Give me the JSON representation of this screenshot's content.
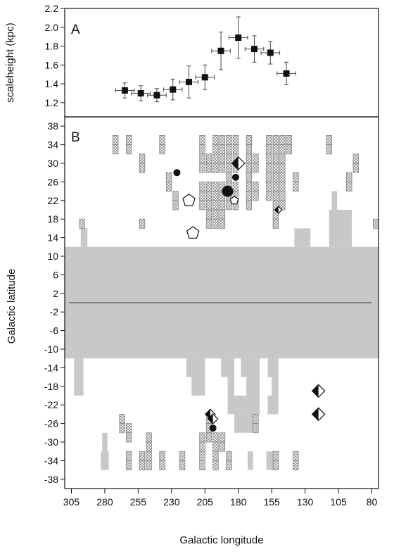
{
  "chart_data": [
    {
      "panel": "A",
      "type": "scatter",
      "ylabel": "scaleheight (kpc)",
      "xlim": [
        310,
        75
      ],
      "ylim": [
        1.05,
        2.2
      ],
      "yticks": [
        1.2,
        1.4,
        1.6,
        1.8,
        2.0,
        2.2
      ],
      "yticklabels": [
        "1.2",
        "1.4",
        "1.6",
        "1.8",
        "2.0",
        "2.2"
      ],
      "series": [
        {
          "points": [
            {
              "x": 265,
              "y": 1.33,
              "xerr": 7,
              "yerr": 0.08
            },
            {
              "x": 253,
              "y": 1.3,
              "xerr": 7,
              "yerr": 0.08
            },
            {
              "x": 241,
              "y": 1.28,
              "xerr": 7,
              "yerr": 0.07
            },
            {
              "x": 229,
              "y": 1.34,
              "xerr": 7,
              "yerr": 0.11
            },
            {
              "x": 217,
              "y": 1.42,
              "xerr": 7,
              "yerr": 0.17
            },
            {
              "x": 205,
              "y": 1.47,
              "xerr": 7,
              "yerr": 0.13
            },
            {
              "x": 193,
              "y": 1.75,
              "xerr": 7,
              "yerr": 0.2
            },
            {
              "x": 180,
              "y": 1.89,
              "xerr": 7,
              "yerr": 0.22
            },
            {
              "x": 168,
              "y": 1.77,
              "xerr": 7,
              "yerr": 0.14
            },
            {
              "x": 156,
              "y": 1.73,
              "xerr": 7,
              "yerr": 0.12
            },
            {
              "x": 144,
              "y": 1.51,
              "xerr": 7,
              "yerr": 0.12
            }
          ]
        }
      ]
    },
    {
      "panel": "B",
      "type": "scatter",
      "xlabel": "Galactic longitude",
      "ylabel": "Galactic latitude",
      "xlim": [
        310,
        75
      ],
      "ylim": [
        -40,
        40
      ],
      "xticks": [
        305,
        280,
        255,
        230,
        205,
        180,
        155,
        130,
        105,
        80
      ],
      "xticklabels": [
        "305",
        "280",
        "255",
        "230",
        "205",
        "180",
        "155",
        "130",
        "105",
        "80"
      ],
      "yticks": [
        38,
        34,
        30,
        26,
        22,
        18,
        14,
        10,
        6,
        2,
        -2,
        -6,
        -10,
        -14,
        -18,
        -22,
        -26,
        -30,
        -34,
        -38
      ],
      "yticklabels": [
        "38",
        "34",
        "30",
        "26",
        "22",
        "18",
        "14",
        "10",
        "6",
        "2",
        "-2",
        "-6",
        "-10",
        "-14",
        "-18",
        "-22",
        "-26",
        "-30",
        "-34",
        "-38"
      ],
      "plane_line_b": 0,
      "grey_coverage": [
        {
          "l0": 310,
          "l1": 75,
          "b0": -12,
          "b1": 12
        },
        {
          "l0": 303,
          "l1": 296,
          "b0": -20,
          "b1": -12
        },
        {
          "l0": 298,
          "l1": 293,
          "b0": 12,
          "b1": 16
        },
        {
          "l0": 138,
          "l1": 126,
          "b0": 12,
          "b1": 16
        },
        {
          "l0": 112,
          "l1": 95,
          "b0": 12,
          "b1": 20
        },
        {
          "l0": 110,
          "l1": 106,
          "b0": 20,
          "b1": 24
        },
        {
          "l0": 219,
          "l1": 205,
          "b0": -16,
          "b1": -12
        },
        {
          "l0": 215,
          "l1": 205,
          "b0": -20,
          "b1": -16
        },
        {
          "l0": 193,
          "l1": 183,
          "b0": -16,
          "b1": -12
        },
        {
          "l0": 188,
          "l1": 183,
          "b0": -20,
          "b1": -16
        },
        {
          "l0": 178,
          "l1": 164,
          "b0": -16,
          "b1": -12
        },
        {
          "l0": 174,
          "l1": 164,
          "b0": -20,
          "b1": -16
        },
        {
          "l0": 158,
          "l1": 150,
          "b0": -16,
          "b1": -12
        },
        {
          "l0": 155,
          "l1": 150,
          "b0": -20,
          "b1": -16
        },
        {
          "l0": 188,
          "l1": 164,
          "b0": -24,
          "b1": -20
        },
        {
          "l0": 183,
          "l1": 168,
          "b0": -28,
          "b1": -24
        },
        {
          "l0": 158,
          "l1": 150,
          "b0": -24,
          "b1": -20
        },
        {
          "l0": 282,
          "l1": 278,
          "b0": -32,
          "b1": -28
        },
        {
          "l0": 283,
          "l1": 277,
          "b0": -36,
          "b1": -32
        },
        {
          "l0": 173,
          "l1": 169,
          "b0": -36,
          "b1": -32
        },
        {
          "l0": 159,
          "l1": 154,
          "b0": -36,
          "b1": -32
        }
      ],
      "hatched_fields": [
        [
          297,
          16
        ],
        [
          272,
          34
        ],
        [
          272,
          32
        ],
        [
          262,
          34
        ],
        [
          262,
          32
        ],
        [
          252,
          30
        ],
        [
          252,
          28
        ],
        [
          252,
          16
        ],
        [
          237,
          34
        ],
        [
          237,
          32
        ],
        [
          232,
          26
        ],
        [
          232,
          24
        ],
        [
          227,
          22
        ],
        [
          227,
          20
        ],
        [
          207,
          34
        ],
        [
          207,
          32
        ],
        [
          207,
          30
        ],
        [
          207,
          28
        ],
        [
          207,
          24
        ],
        [
          207,
          22
        ],
        [
          207,
          20
        ],
        [
          202,
          30
        ],
        [
          202,
          28
        ],
        [
          202,
          24
        ],
        [
          202,
          22
        ],
        [
          202,
          20
        ],
        [
          202,
          18
        ],
        [
          202,
          16
        ],
        [
          197,
          34
        ],
        [
          197,
          32
        ],
        [
          197,
          30
        ],
        [
          197,
          28
        ],
        [
          197,
          24
        ],
        [
          197,
          22
        ],
        [
          197,
          20
        ],
        [
          197,
          18
        ],
        [
          197,
          16
        ],
        [
          192,
          34
        ],
        [
          192,
          32
        ],
        [
          192,
          30
        ],
        [
          192,
          28
        ],
        [
          192,
          24
        ],
        [
          192,
          22
        ],
        [
          192,
          20
        ],
        [
          192,
          18
        ],
        [
          192,
          16
        ],
        [
          187,
          34
        ],
        [
          187,
          32
        ],
        [
          187,
          30
        ],
        [
          187,
          28
        ],
        [
          187,
          26
        ],
        [
          187,
          24
        ],
        [
          187,
          22
        ],
        [
          187,
          20
        ],
        [
          182,
          34
        ],
        [
          182,
          32
        ],
        [
          182,
          30
        ],
        [
          182,
          28
        ],
        [
          182,
          24
        ],
        [
          182,
          22
        ],
        [
          182,
          20
        ],
        [
          172,
          34
        ],
        [
          172,
          32
        ],
        [
          172,
          30
        ],
        [
          172,
          28
        ],
        [
          172,
          26
        ],
        [
          172,
          24
        ],
        [
          172,
          22
        ],
        [
          172,
          20
        ],
        [
          167,
          30
        ],
        [
          167,
          28
        ],
        [
          167,
          24
        ],
        [
          167,
          22
        ],
        [
          157,
          34
        ],
        [
          157,
          32
        ],
        [
          157,
          30
        ],
        [
          157,
          28
        ],
        [
          157,
          26
        ],
        [
          157,
          24
        ],
        [
          157,
          22
        ],
        [
          152,
          34
        ],
        [
          152,
          32
        ],
        [
          152,
          30
        ],
        [
          152,
          28
        ],
        [
          152,
          26
        ],
        [
          152,
          24
        ],
        [
          152,
          22
        ],
        [
          152,
          20
        ],
        [
          152,
          18
        ],
        [
          152,
          16
        ],
        [
          147,
          34
        ],
        [
          147,
          32
        ],
        [
          147,
          30
        ],
        [
          147,
          28
        ],
        [
          147,
          26
        ],
        [
          147,
          24
        ],
        [
          147,
          22
        ],
        [
          147,
          20
        ],
        [
          142,
          34
        ],
        [
          142,
          32
        ],
        [
          137,
          26
        ],
        [
          137,
          24
        ],
        [
          112,
          34
        ],
        [
          112,
          32
        ],
        [
          97,
          26
        ],
        [
          97,
          24
        ],
        [
          92,
          30
        ],
        [
          92,
          28
        ],
        [
          77,
          16
        ],
        [
          267,
          -26
        ],
        [
          267,
          -28
        ],
        [
          262,
          -28
        ],
        [
          262,
          -30
        ],
        [
          262,
          -34
        ],
        [
          262,
          -36
        ],
        [
          252,
          -34
        ],
        [
          252,
          -36
        ],
        [
          247,
          -30
        ],
        [
          247,
          -32
        ],
        [
          247,
          -34
        ],
        [
          247,
          -36
        ],
        [
          237,
          -34
        ],
        [
          237,
          -36
        ],
        [
          222,
          -34
        ],
        [
          222,
          -36
        ],
        [
          207,
          -30
        ],
        [
          207,
          -32
        ],
        [
          207,
          -34
        ],
        [
          207,
          -36
        ],
        [
          202,
          -26
        ],
        [
          202,
          -28
        ],
        [
          202,
          -30
        ],
        [
          197,
          -30
        ],
        [
          197,
          -32
        ],
        [
          197,
          -34
        ],
        [
          197,
          -36
        ],
        [
          192,
          -30
        ],
        [
          192,
          -32
        ],
        [
          187,
          -34
        ],
        [
          187,
          -36
        ],
        [
          167,
          -26
        ],
        [
          167,
          -28
        ],
        [
          152,
          -34
        ],
        [
          152,
          -36
        ],
        [
          137,
          -34
        ],
        [
          137,
          -36
        ]
      ],
      "filled_circles": [
        {
          "l": 226,
          "b": 28,
          "size": 5
        },
        {
          "l": 188,
          "b": 24,
          "size": 8
        },
        {
          "l": 182,
          "b": 27,
          "size": 5
        },
        {
          "l": 199,
          "b": -27,
          "size": 5
        }
      ],
      "open_pentagons": [
        {
          "l": 217,
          "b": 22,
          "size": 9
        },
        {
          "l": 214,
          "b": 15,
          "size": 9
        },
        {
          "l": 183,
          "b": 22,
          "size": 6
        }
      ],
      "half_filled_diamonds": [
        {
          "l": 180,
          "b": 30,
          "size": 9
        },
        {
          "l": 201,
          "b": -24,
          "size": 7
        },
        {
          "l": 199,
          "b": -25,
          "size": 7
        },
        {
          "l": 120,
          "b": -19,
          "size": 9
        },
        {
          "l": 120,
          "b": -24,
          "size": 9
        },
        {
          "l": 150,
          "b": 20,
          "size": 5
        }
      ]
    }
  ],
  "colors": {
    "grey_fill": "#c8c8c8",
    "hatch_line": "#8a8a8a",
    "ink": "#111111"
  }
}
